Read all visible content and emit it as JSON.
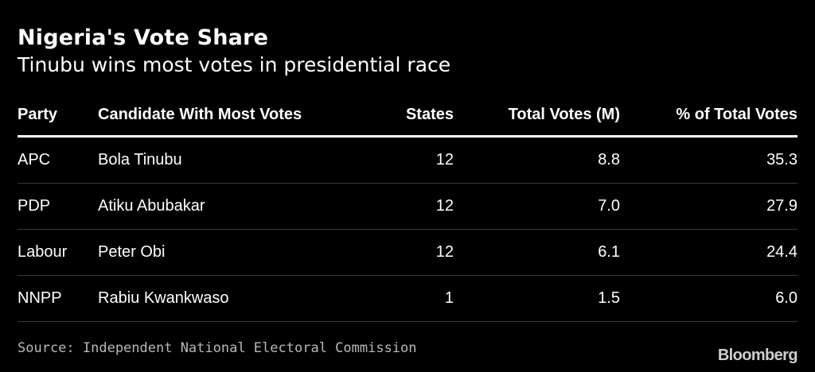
{
  "header": {
    "title": "Nigeria's Vote Share",
    "subtitle": "Tinubu wins most votes in presidential race"
  },
  "chart_data": {
    "type": "table",
    "title": "Nigeria's Vote Share",
    "subtitle": "Tinubu wins most votes in presidential race",
    "columns": [
      "Party",
      "Candidate With Most Votes",
      "States",
      "Total Votes (M)",
      "% of Total Votes"
    ],
    "rows": [
      [
        "APC",
        "Bola Tinubu",
        "12",
        "8.8",
        "35.3"
      ],
      [
        "PDP",
        "Atiku Abubakar",
        "12",
        "7.0",
        "27.9"
      ],
      [
        "Labour",
        "Peter Obi",
        "12",
        "6.1",
        "24.4"
      ],
      [
        "NNPP",
        "Rabiu Kwankwaso",
        "1",
        "1.5",
        "6.0"
      ]
    ]
  },
  "footer": {
    "source": "Source: Independent National Electoral Commission",
    "brand": "Bloomberg"
  }
}
